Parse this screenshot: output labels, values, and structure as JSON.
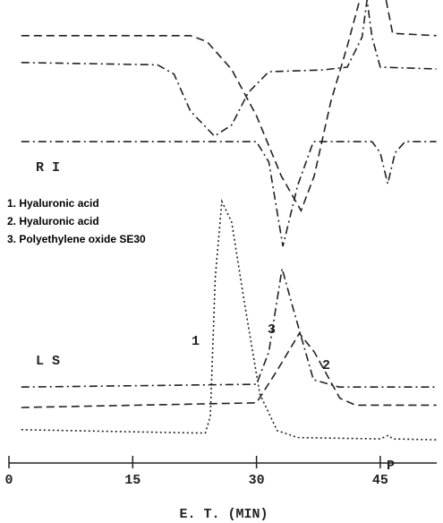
{
  "chart_data": {
    "type": "line",
    "x_label": "E.  T.   (MIN)",
    "xlim": [
      0,
      52
    ],
    "xticks": [
      0,
      15,
      30,
      45
    ],
    "ylim": [
      0,
      100
    ],
    "annotations": [
      "R  I",
      "L  S",
      "1. Hyaluronic acid",
      "2. Hyaluronic acid",
      "3. Polyethylene oxide SE30",
      "P"
    ],
    "series": [
      {
        "color": "#222222",
        "dash": "dashed",
        "x": [
          1.5,
          22,
          24,
          27,
          30,
          33,
          35.4,
          37,
          39,
          41,
          42.5,
          44,
          45.7,
          46.5,
          51.8
        ],
        "values": [
          92.3,
          92.3,
          91,
          85,
          75,
          62,
          54.5,
          62,
          78,
          90,
          100,
          null,
          100,
          92.8,
          92.3
        ]
      },
      {
        "color": "#222222",
        "dash": "dash-dot",
        "x": [
          1.5,
          18,
          20,
          22,
          24.9,
          27,
          29,
          31.5,
          38,
          41,
          42.8,
          43.4,
          44,
          45,
          51.8
        ],
        "values": [
          86.5,
          86,
          84,
          76,
          70.6,
          73,
          80,
          84.5,
          84.9,
          85.5,
          92,
          100,
          92,
          85.5,
          85.1
        ]
      },
      {
        "color": "#222222",
        "dash": "dash-dot",
        "x": [
          1.5,
          30,
          31.5,
          33.2,
          35,
          36.9,
          44,
          45,
          45.9,
          46.8,
          48,
          51.8
        ],
        "values": [
          69.4,
          69.4,
          65,
          46.8,
          60,
          69.4,
          69.4,
          67,
          60.3,
          67,
          69.4,
          69.4
        ]
      },
      {
        "name": "1",
        "color": "#222222",
        "dash": "dotted",
        "x": [
          1.5,
          22,
          23.8,
          24.4,
          25,
          25.8,
          27,
          28.5,
          30.4,
          32.5,
          35,
          45,
          46,
          46.5,
          51.8
        ],
        "values": [
          7.2,
          6.5,
          6.5,
          10,
          40,
          56.5,
          52,
          35,
          14.9,
          7,
          5.5,
          5.2,
          6,
          5.2,
          5
        ]
      },
      {
        "name": "3",
        "color": "#222222",
        "dash": "dash-dot",
        "x": [
          1.5,
          30,
          31.5,
          33.1,
          34.5,
          36.9,
          40,
          51.8
        ],
        "values": [
          16.4,
          17,
          24,
          42,
          33,
          18,
          16.4,
          16.4
        ]
      },
      {
        "name": "2",
        "color": "#222222",
        "dash": "dashed",
        "x": [
          1.5,
          30,
          32.5,
          35.2,
          37,
          40.1,
          42,
          51.8
        ],
        "values": [
          12,
          13,
          20,
          28,
          24,
          14,
          12.5,
          12.5
        ]
      }
    ]
  }
}
